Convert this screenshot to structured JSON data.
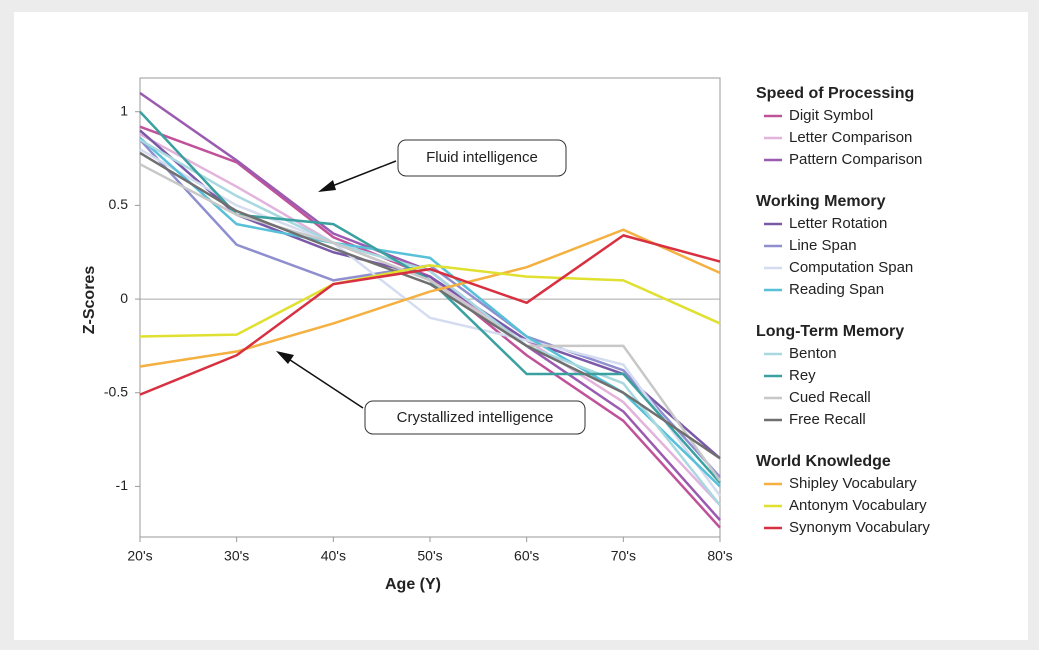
{
  "chart_data": {
    "type": "line",
    "x_label": "Age (Y)",
    "y_label": "Z-Scores",
    "categories": [
      "20's",
      "30's",
      "40's",
      "50's",
      "60's",
      "70's",
      "80's"
    ],
    "ylim": [
      -1.27,
      1.18
    ],
    "yticks": [
      1,
      0.5,
      0,
      -0.5,
      -1
    ],
    "annotations": [
      "Fluid intelligence",
      "Crystallized intelligence"
    ],
    "groups": [
      {
        "name": "Speed of Processing",
        "series": [
          {
            "name": "Digit Symbol",
            "color": "#c0529a",
            "values": [
              0.92,
              0.73,
              0.33,
              0.12,
              -0.3,
              -0.65,
              -1.22
            ]
          },
          {
            "name": "Letter Comparison",
            "color": "#e2b4dc",
            "values": [
              0.88,
              0.6,
              0.3,
              0.1,
              -0.22,
              -0.55,
              -1.1
            ]
          },
          {
            "name": "Pattern Comparison",
            "color": "#9a5bb0",
            "values": [
              1.1,
              0.74,
              0.35,
              0.15,
              -0.25,
              -0.6,
              -1.18
            ]
          }
        ]
      },
      {
        "name": "Working Memory",
        "series": [
          {
            "name": "Letter Rotation",
            "color": "#7a5aa8",
            "values": [
              0.9,
              0.45,
              0.25,
              0.12,
              -0.22,
              -0.4,
              -0.85
            ]
          },
          {
            "name": "Line Span",
            "color": "#8f8fcf",
            "values": [
              0.85,
              0.29,
              0.1,
              0.18,
              -0.2,
              -0.38,
              -0.95
            ]
          },
          {
            "name": "Computation Span",
            "color": "#d4dcf0",
            "values": [
              0.8,
              0.5,
              0.3,
              -0.1,
              -0.22,
              -0.35,
              -1.05
            ]
          },
          {
            "name": "Reading Span",
            "color": "#58c0d8",
            "values": [
              0.86,
              0.4,
              0.3,
              0.22,
              -0.2,
              -0.5,
              -1.0
            ]
          }
        ]
      },
      {
        "name": "Long-Term Memory",
        "series": [
          {
            "name": "Benton",
            "color": "#a8d8e0",
            "values": [
              0.85,
              0.55,
              0.3,
              0.15,
              -0.25,
              -0.45,
              -1.1
            ]
          },
          {
            "name": "Rey",
            "color": "#3aa0a0",
            "values": [
              1.0,
              0.45,
              0.4,
              0.1,
              -0.4,
              -0.4,
              -0.98
            ]
          },
          {
            "name": "Cued Recall",
            "color": "#c8c8c8",
            "values": [
              0.72,
              0.45,
              0.3,
              0.1,
              -0.25,
              -0.25,
              -0.97
            ]
          },
          {
            "name": "Free Recall",
            "color": "#707070",
            "values": [
              0.78,
              0.47,
              0.27,
              0.08,
              -0.25,
              -0.5,
              -0.85
            ]
          }
        ]
      },
      {
        "name": "World Knowledge",
        "series": [
          {
            "name": "Shipley Vocabulary",
            "color": "#f4b040",
            "values": [
              -0.36,
              -0.28,
              -0.13,
              0.04,
              0.17,
              0.37,
              0.14
            ]
          },
          {
            "name": "Antonym Vocabulary",
            "color": "#e0e030",
            "values": [
              -0.2,
              -0.19,
              0.08,
              0.18,
              0.12,
              0.1,
              -0.13
            ]
          },
          {
            "name": "Synonym Vocabulary",
            "color": "#d83040",
            "values": [
              -0.51,
              -0.3,
              0.08,
              0.16,
              -0.02,
              0.34,
              0.2
            ]
          }
        ]
      }
    ]
  }
}
